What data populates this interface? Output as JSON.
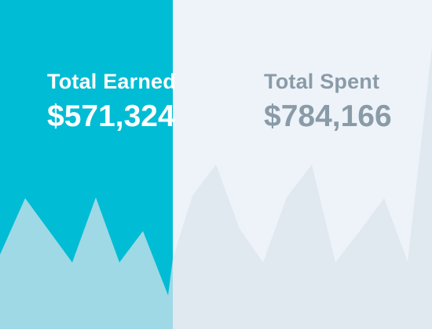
{
  "earned": {
    "label": "Total Earned",
    "value": "$571,324",
    "color": "#00bcd4",
    "wave_color": "#9ed9e5"
  },
  "spent": {
    "label": "Total Spent",
    "value": "$784,166",
    "color": "#eef3f9",
    "wave_color": "#e0e8f0",
    "text_color": "#8a9ba8"
  }
}
